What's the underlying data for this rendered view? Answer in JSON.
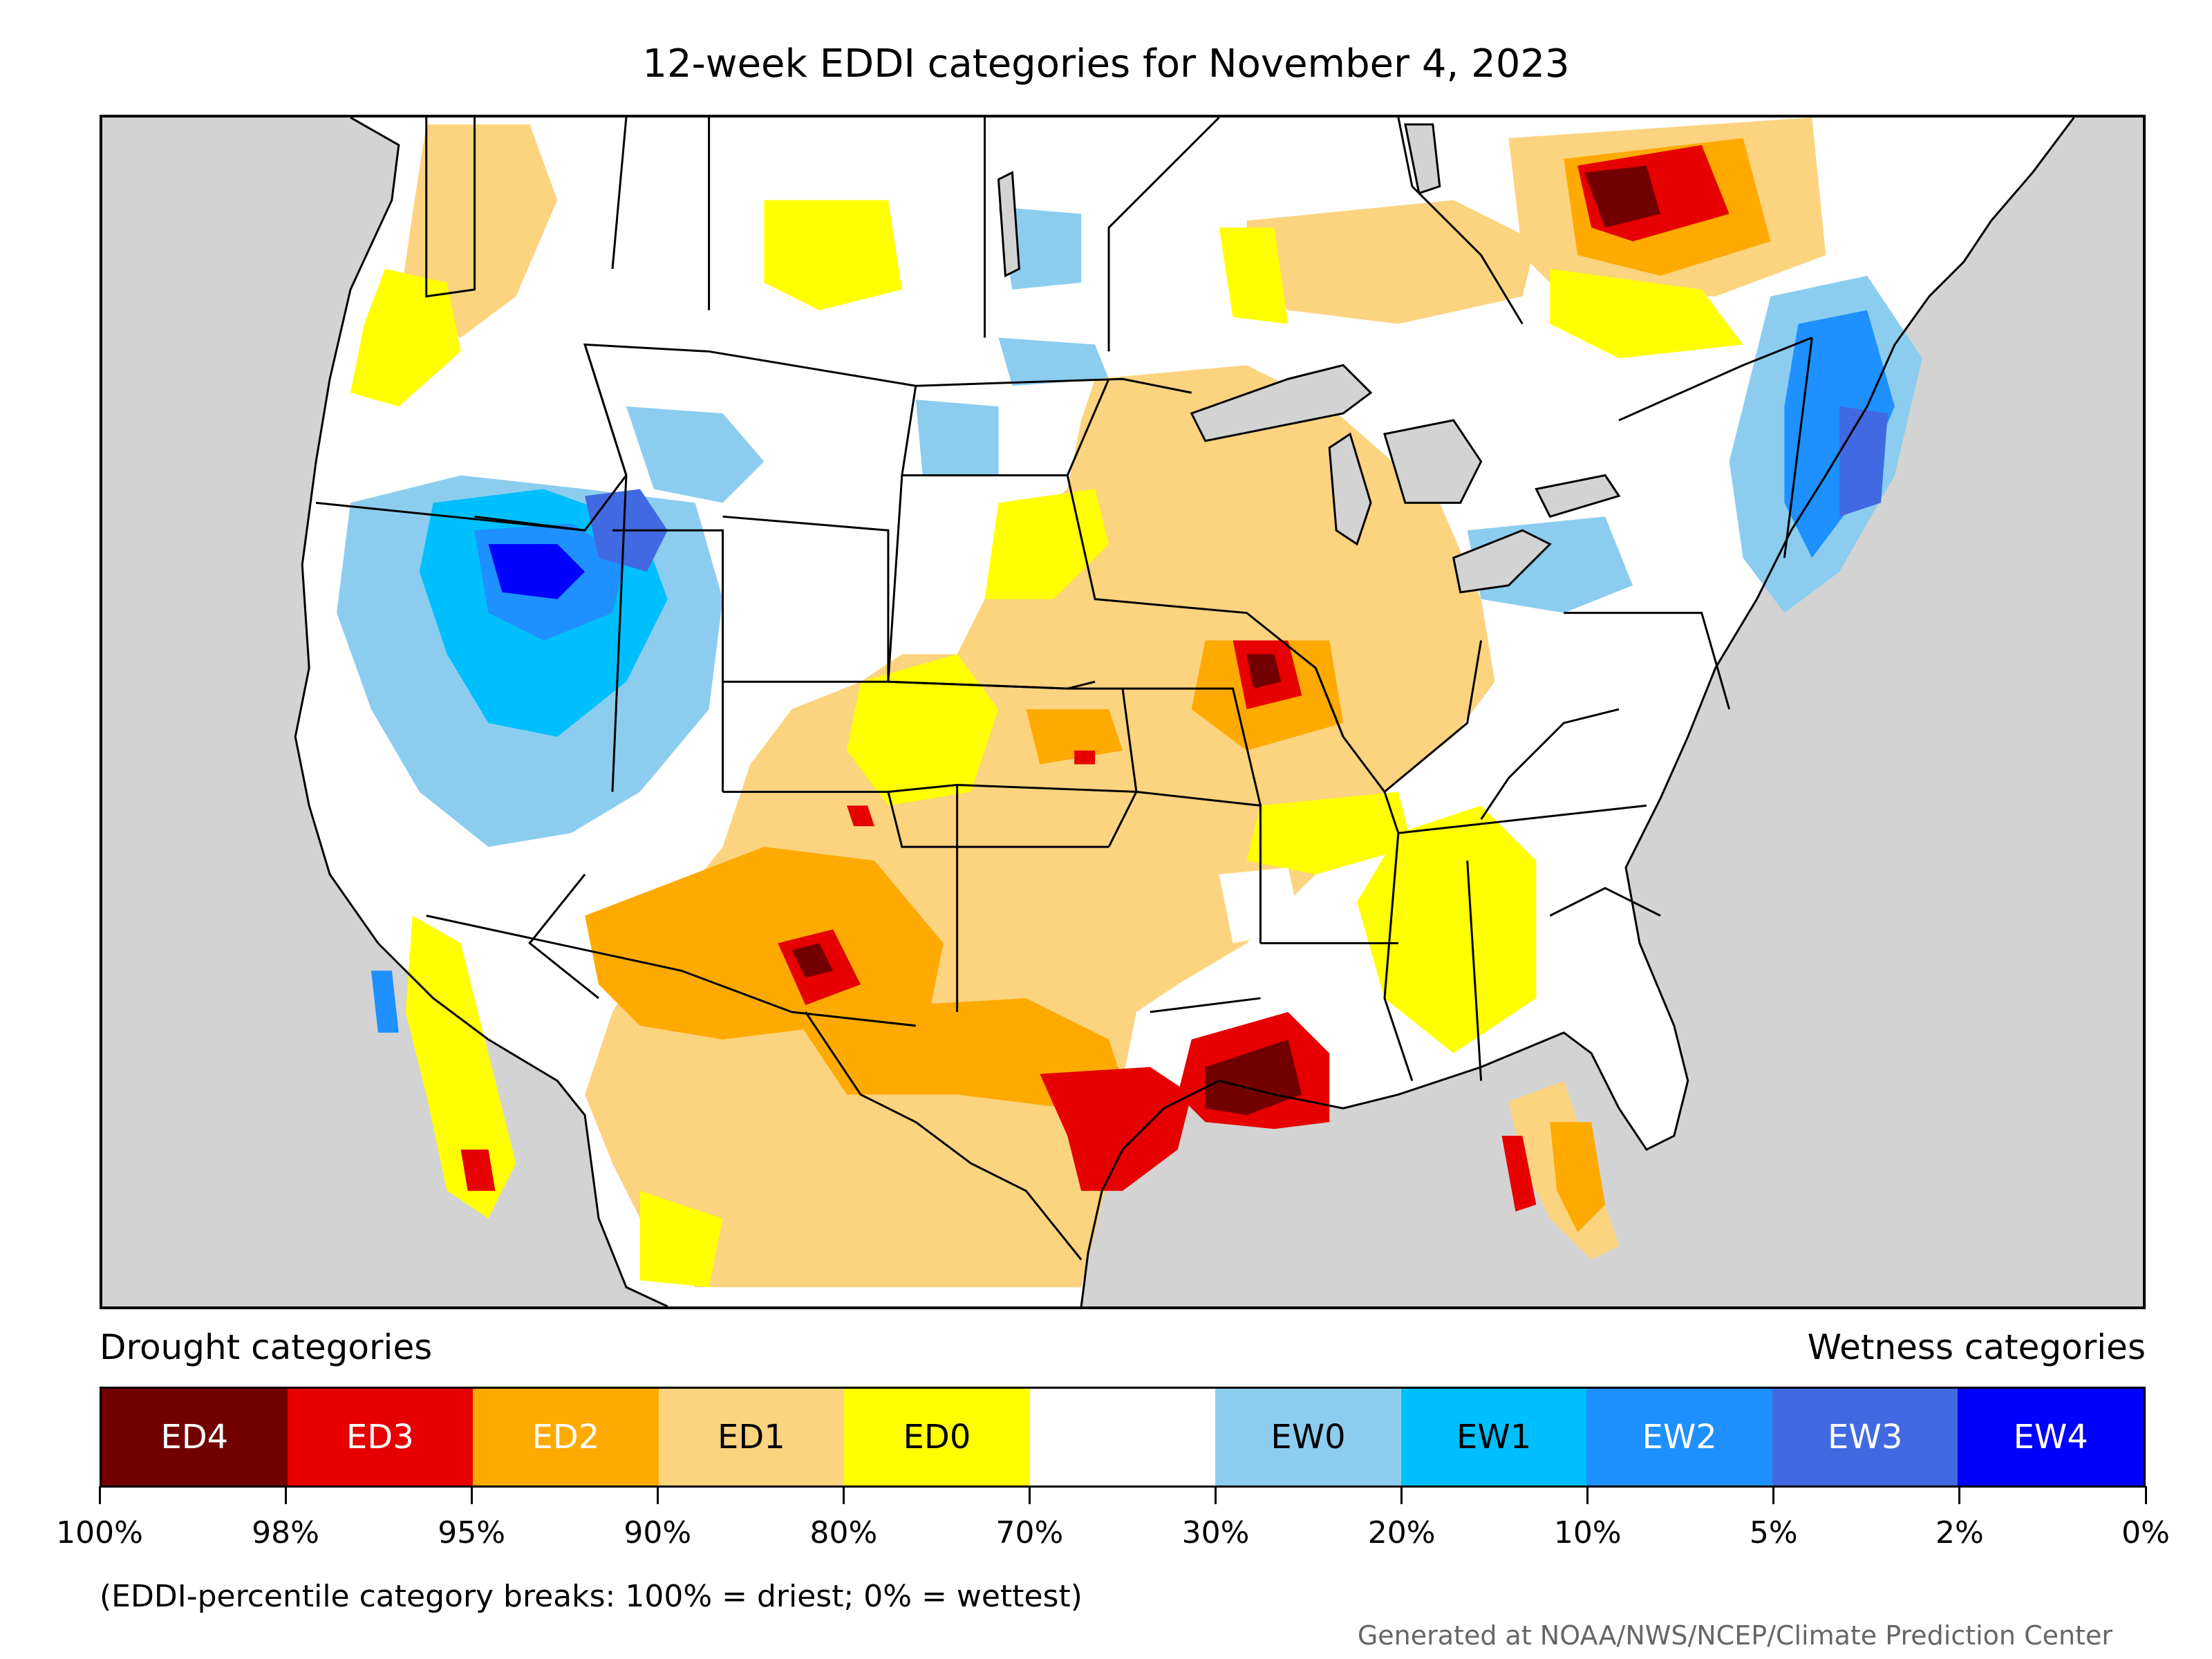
{
  "title": "12-week EDDI categories for November 4, 2023",
  "legend": {
    "drought_heading": "Drought categories",
    "wetness_heading": "Wetness categories",
    "categories": [
      {
        "label": "ED4",
        "color": "#730000",
        "text_color": "#ffffff"
      },
      {
        "label": "ED3",
        "color": "#e60000",
        "text_color": "#ffffff"
      },
      {
        "label": "ED2",
        "color": "#ffaa00",
        "text_color": "#ffffff"
      },
      {
        "label": "ED1",
        "color": "#fcd37f",
        "text_color": "#000000"
      },
      {
        "label": "ED0",
        "color": "#ffff00",
        "text_color": "#000000"
      },
      {
        "label": "",
        "color": "#ffffff",
        "text_color": "#000000"
      },
      {
        "label": "EW0",
        "color": "#8ccdef",
        "text_color": "#000000"
      },
      {
        "label": "EW1",
        "color": "#00bfff",
        "text_color": "#000000"
      },
      {
        "label": "EW2",
        "color": "#1e90ff",
        "text_color": "#ffffff"
      },
      {
        "label": "EW3",
        "color": "#4169e1",
        "text_color": "#ffffff"
      },
      {
        "label": "EW4",
        "color": "#0000ff",
        "text_color": "#ffffff"
      }
    ],
    "breaks": [
      "100%",
      "98%",
      "95%",
      "90%",
      "80%",
      "70%",
      "30%",
      "20%",
      "10%",
      "5%",
      "2%",
      "0%"
    ]
  },
  "note": "(EDDI-percentile category breaks: 100% = driest; 0% = wettest)",
  "credit": "Generated at NOAA/NWS/NCEP/Climate Prediction Center",
  "map_colors": {
    "ocean": "#d3d3d3",
    "land": "#ffffff",
    "lakes": "#d3d3d3",
    "borders": "#000000"
  }
}
